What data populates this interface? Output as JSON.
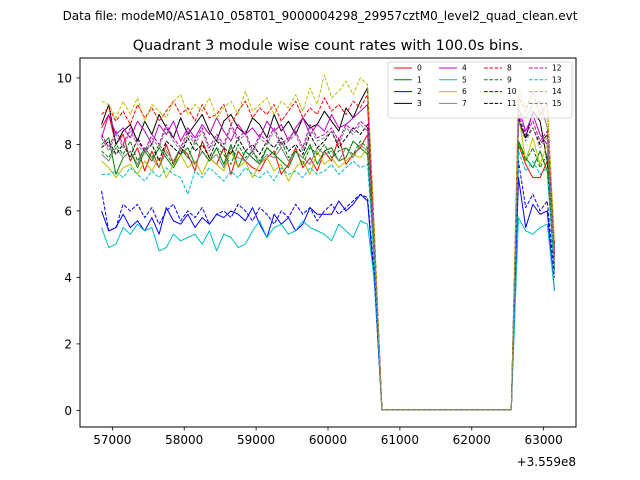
{
  "chart_data": {
    "type": "line",
    "suptitle": "Data file: modeM0/AS1A10_058T01_9000004298_29957cztM0_level2_quad_clean.evt",
    "title": "Quadrant 3 module wise count rates with 100.0s bins.",
    "xlabel": "",
    "ylabel": "",
    "x_offset_label": "+3.559e8",
    "xlim": [
      56550,
      63450
    ],
    "ylim": [
      -0.5,
      10.6
    ],
    "x_ticks": [
      57000,
      58000,
      59000,
      60000,
      61000,
      62000,
      63000
    ],
    "y_ticks": [
      0,
      2,
      4,
      6,
      8,
      10
    ],
    "x": [
      56850,
      56950,
      57050,
      57150,
      57250,
      57350,
      57450,
      57550,
      57650,
      57750,
      57850,
      57950,
      58050,
      58150,
      58250,
      58350,
      58450,
      58550,
      58650,
      58750,
      58850,
      58950,
      59050,
      59150,
      59250,
      59350,
      59450,
      59550,
      59650,
      59750,
      59850,
      59950,
      60050,
      60150,
      60250,
      60350,
      60450,
      60550,
      60650,
      60750,
      60850,
      60950,
      61050,
      61150,
      61250,
      61350,
      61450,
      61550,
      61650,
      61750,
      61850,
      61950,
      62050,
      62150,
      62250,
      62350,
      62450,
      62550,
      62650,
      62750,
      62850,
      62950,
      63050,
      63150
    ],
    "series": [
      {
        "name": "0",
        "color": "#ff0000",
        "dash": "solid",
        "values": [
          8.5,
          8.9,
          8.0,
          8.3,
          7.5,
          7.9,
          7.2,
          7.8,
          7.3,
          8.0,
          7.4,
          7.9,
          7.7,
          7.2,
          8.1,
          7.6,
          7.4,
          7.9,
          7.1,
          7.8,
          7.5,
          7.3,
          7.2,
          7.6,
          7.8,
          7.1,
          7.4,
          7.9,
          7.3,
          7.6,
          7.2,
          7.8,
          7.5,
          8.2,
          7.4,
          7.7,
          7.9,
          8.3,
          4.2,
          0.02,
          0.02,
          0.02,
          0.02,
          0.02,
          0.02,
          0.02,
          0.02,
          0.02,
          0.02,
          0.02,
          0.02,
          0.02,
          0.02,
          0.02,
          0.02,
          0.02,
          0.02,
          0.02,
          8.0,
          7.4,
          7.0,
          7.0,
          7.5,
          4.3
        ]
      },
      {
        "name": "1",
        "color": "#008000",
        "dash": "solid",
        "values": [
          8.0,
          8.2,
          7.1,
          7.6,
          7.8,
          7.3,
          7.8,
          7.5,
          7.9,
          7.6,
          7.3,
          7.7,
          7.9,
          7.4,
          7.8,
          7.5,
          7.9,
          7.4,
          8.0,
          7.3,
          7.8,
          7.6,
          7.4,
          7.9,
          7.7,
          7.5,
          7.3,
          7.8,
          7.6,
          8.0,
          7.4,
          7.8,
          7.9,
          7.5,
          7.6,
          8.1,
          7.9,
          7.7,
          4.4,
          0.02,
          0.02,
          0.02,
          0.02,
          0.02,
          0.02,
          0.02,
          0.02,
          0.02,
          0.02,
          0.02,
          0.02,
          0.02,
          0.02,
          0.02,
          0.02,
          0.02,
          0.02,
          0.02,
          8.1,
          7.6,
          7.3,
          7.8,
          7.2,
          4.2
        ]
      },
      {
        "name": "2",
        "color": "#0000ff",
        "dash": "solid",
        "values": [
          6.0,
          5.4,
          5.5,
          5.9,
          5.5,
          5.7,
          5.4,
          5.8,
          5.3,
          6.1,
          5.7,
          5.6,
          5.9,
          5.5,
          5.8,
          5.6,
          5.9,
          5.8,
          6.0,
          5.9,
          5.7,
          6.1,
          5.6,
          5.2,
          5.9,
          5.6,
          5.8,
          5.4,
          5.6,
          6.1,
          5.9,
          5.9,
          5.9,
          6.3,
          6.0,
          6.2,
          6.5,
          6.3,
          3.7,
          0.02,
          0.02,
          0.02,
          0.02,
          0.02,
          0.02,
          0.02,
          0.02,
          0.02,
          0.02,
          0.02,
          0.02,
          0.02,
          0.02,
          0.02,
          0.02,
          0.02,
          0.02,
          0.02,
          7.0,
          5.5,
          6.2,
          5.9,
          6.0,
          3.6
        ]
      },
      {
        "name": "3",
        "color": "#000000",
        "dash": "solid",
        "values": [
          8.6,
          9.2,
          8.0,
          8.4,
          8.6,
          8.1,
          8.7,
          8.3,
          8.9,
          8.5,
          8.2,
          8.8,
          8.3,
          8.6,
          8.9,
          8.4,
          8.1,
          8.7,
          8.9,
          8.5,
          8.3,
          8.8,
          8.6,
          8.2,
          8.9,
          8.4,
          8.7,
          8.3,
          8.8,
          8.5,
          8.6,
          9.0,
          8.7,
          8.4,
          9.1,
          8.8,
          9.3,
          9.7,
          5.0,
          0.02,
          0.02,
          0.02,
          0.02,
          0.02,
          0.02,
          0.02,
          0.02,
          0.02,
          0.02,
          0.02,
          0.02,
          0.02,
          0.02,
          0.02,
          0.02,
          0.02,
          0.02,
          0.02,
          8.7,
          8.2,
          9.0,
          8.7,
          7.5,
          4.6
        ]
      },
      {
        "name": "4",
        "color": "#bf00bf",
        "dash": "solid",
        "values": [
          8.2,
          8.9,
          8.3,
          8.5,
          8.2,
          8.7,
          8.4,
          8.0,
          8.6,
          8.3,
          8.7,
          8.1,
          8.5,
          8.2,
          8.6,
          8.3,
          8.8,
          8.4,
          8.1,
          8.6,
          8.3,
          8.5,
          8.2,
          8.7,
          8.4,
          8.6,
          8.1,
          8.5,
          8.8,
          8.3,
          8.6,
          8.4,
          8.9,
          8.5,
          8.6,
          8.8,
          9.0,
          9.2,
          4.9,
          0.02,
          0.02,
          0.02,
          0.02,
          0.02,
          0.02,
          0.02,
          0.02,
          0.02,
          0.02,
          0.02,
          0.02,
          0.02,
          0.02,
          0.02,
          0.02,
          0.02,
          0.02,
          0.02,
          9.1,
          8.4,
          8.9,
          8.3,
          8.0,
          4.8
        ]
      },
      {
        "name": "5",
        "color": "#00bfbf",
        "dash": "solid",
        "values": [
          5.5,
          4.9,
          5.0,
          5.5,
          5.3,
          5.6,
          5.4,
          5.5,
          4.8,
          4.9,
          5.3,
          5.1,
          5.2,
          5.3,
          5.0,
          5.4,
          4.8,
          5.3,
          5.2,
          4.9,
          5.0,
          5.4,
          5.7,
          5.2,
          5.5,
          5.6,
          5.3,
          5.4,
          5.7,
          5.5,
          5.4,
          5.3,
          5.1,
          5.6,
          5.4,
          5.2,
          5.7,
          5.6,
          3.8,
          0.02,
          0.02,
          0.02,
          0.02,
          0.02,
          0.02,
          0.02,
          0.02,
          0.02,
          0.02,
          0.02,
          0.02,
          0.02,
          0.02,
          0.02,
          0.02,
          0.02,
          0.02,
          0.02,
          5.8,
          5.4,
          5.3,
          5.5,
          5.6,
          3.6
        ]
      },
      {
        "name": "6",
        "color": "#bfbf00",
        "dash": "solid",
        "values": [
          7.5,
          7.3,
          7.0,
          7.3,
          7.4,
          7.1,
          7.5,
          7.2,
          7.6,
          7.0,
          7.4,
          7.7,
          7.3,
          7.5,
          7.1,
          7.6,
          7.4,
          7.2,
          7.8,
          7.3,
          7.5,
          7.0,
          7.4,
          7.6,
          7.2,
          7.4,
          6.9,
          7.3,
          7.5,
          7.1,
          7.8,
          7.4,
          7.6,
          7.3,
          7.5,
          7.7,
          7.6,
          7.9,
          4.5,
          0.02,
          0.02,
          0.02,
          0.02,
          0.02,
          0.02,
          0.02,
          0.02,
          0.02,
          0.02,
          0.02,
          0.02,
          0.02,
          0.02,
          0.02,
          0.02,
          0.02,
          0.02,
          0.02,
          8.9,
          7.5,
          8.2,
          7.4,
          8.0,
          4.6
        ]
      },
      {
        "name": "7",
        "color": "#808080",
        "dash": "solid",
        "values": [
          7.7,
          7.5,
          7.9,
          7.6,
          7.8,
          7.4,
          7.9,
          7.6,
          7.3,
          7.8,
          7.5,
          7.9,
          7.6,
          7.4,
          7.8,
          7.5,
          7.7,
          7.3,
          7.9,
          7.6,
          7.5,
          7.8,
          7.4,
          7.7,
          7.6,
          7.9,
          7.5,
          7.8,
          7.6,
          7.4,
          7.9,
          7.7,
          7.8,
          7.5,
          7.9,
          7.6,
          8.0,
          7.8,
          4.6,
          0.02,
          0.02,
          0.02,
          0.02,
          0.02,
          0.02,
          0.02,
          0.02,
          0.02,
          0.02,
          0.02,
          0.02,
          0.02,
          0.02,
          0.02,
          0.02,
          0.02,
          0.02,
          0.02,
          9.0,
          8.8,
          9.2,
          9.3,
          8.5,
          4.9
        ]
      },
      {
        "name": "8",
        "color": "#ff0000",
        "dash": "dashed",
        "values": [
          8.9,
          9.1,
          8.7,
          9.0,
          8.6,
          9.2,
          8.8,
          9.1,
          8.7,
          9.0,
          9.3,
          8.9,
          9.1,
          8.7,
          9.2,
          8.8,
          8.9,
          9.2,
          8.6,
          9.0,
          9.3,
          8.8,
          9.1,
          8.9,
          9.2,
          8.7,
          9.0,
          9.3,
          8.8,
          9.1,
          8.9,
          9.4,
          9.0,
          9.2,
          8.9,
          9.3,
          9.1,
          9.5,
          5.1,
          0.02,
          0.02,
          0.02,
          0.02,
          0.02,
          0.02,
          0.02,
          0.02,
          0.02,
          0.02,
          0.02,
          0.02,
          0.02,
          0.02,
          0.02,
          0.02,
          0.02,
          0.02,
          0.02,
          9.4,
          9.0,
          9.6,
          8.9,
          9.2,
          5.0
        ]
      },
      {
        "name": "9",
        "color": "#008000",
        "dash": "dashed",
        "values": [
          7.8,
          7.6,
          8.0,
          7.7,
          8.1,
          7.5,
          7.9,
          7.6,
          8.0,
          7.7,
          7.4,
          7.9,
          7.6,
          8.1,
          7.8,
          7.5,
          7.9,
          7.7,
          7.4,
          8.0,
          7.6,
          7.8,
          7.5,
          7.9,
          7.7,
          8.1,
          7.6,
          7.8,
          7.4,
          7.9,
          7.7,
          8.0,
          7.6,
          7.8,
          7.9,
          7.7,
          8.1,
          7.9,
          4.5,
          0.02,
          0.02,
          0.02,
          0.02,
          0.02,
          0.02,
          0.02,
          0.02,
          0.02,
          0.02,
          0.02,
          0.02,
          0.02,
          0.02,
          0.02,
          0.02,
          0.02,
          0.02,
          0.02,
          8.1,
          7.5,
          7.9,
          7.3,
          7.7,
          4.4
        ]
      },
      {
        "name": "10",
        "color": "#0000ff",
        "dash": "dashed",
        "values": [
          6.6,
          5.4,
          5.5,
          6.2,
          6.0,
          6.2,
          5.8,
          6.1,
          5.6,
          6.0,
          6.2,
          5.7,
          6.0,
          5.8,
          6.1,
          5.6,
          5.9,
          6.0,
          5.8,
          6.2,
          6.0,
          5.7,
          6.1,
          5.9,
          5.6,
          6.0,
          5.8,
          6.2,
          5.9,
          6.1,
          5.7,
          6.0,
          6.2,
          5.9,
          6.1,
          6.3,
          6.5,
          6.4,
          4.0,
          0.02,
          0.02,
          0.02,
          0.02,
          0.02,
          0.02,
          0.02,
          0.02,
          0.02,
          0.02,
          0.02,
          0.02,
          0.02,
          0.02,
          0.02,
          0.02,
          0.02,
          0.02,
          0.02,
          7.5,
          6.1,
          6.5,
          6.0,
          6.3,
          4.0
        ]
      },
      {
        "name": "11",
        "color": "#000000",
        "dash": "dashed",
        "values": [
          7.9,
          8.1,
          7.7,
          8.0,
          7.6,
          8.2,
          7.8,
          8.0,
          7.5,
          8.1,
          7.9,
          7.7,
          8.2,
          7.8,
          8.0,
          7.6,
          8.1,
          7.9,
          7.7,
          8.2,
          7.8,
          8.0,
          7.7,
          8.1,
          7.9,
          8.2,
          7.8,
          8.0,
          7.7,
          8.3,
          7.9,
          8.1,
          8.4,
          7.9,
          8.2,
          8.5,
          8.3,
          8.6,
          4.7,
          0.02,
          0.02,
          0.02,
          0.02,
          0.02,
          0.02,
          0.02,
          0.02,
          0.02,
          0.02,
          0.02,
          0.02,
          0.02,
          0.02,
          0.02,
          0.02,
          0.02,
          0.02,
          0.02,
          8.8,
          8.2,
          8.5,
          8.0,
          8.3,
          4.7
        ]
      },
      {
        "name": "12",
        "color": "#bf00bf",
        "dash": "dashed",
        "values": [
          8.3,
          7.9,
          8.4,
          8.0,
          8.5,
          8.1,
          7.8,
          8.3,
          8.0,
          8.6,
          8.2,
          7.9,
          8.4,
          8.1,
          8.5,
          7.9,
          8.3,
          8.0,
          8.6,
          8.2,
          8.4,
          7.8,
          8.3,
          8.1,
          8.5,
          8.0,
          8.2,
          8.4,
          7.9,
          8.6,
          8.2,
          8.3,
          8.5,
          8.1,
          8.6,
          8.4,
          8.7,
          8.5,
          4.8,
          0.02,
          0.02,
          0.02,
          0.02,
          0.02,
          0.02,
          0.02,
          0.02,
          0.02,
          0.02,
          0.02,
          0.02,
          0.02,
          0.02,
          0.02,
          0.02,
          0.02,
          0.02,
          0.02,
          8.9,
          8.3,
          8.7,
          8.1,
          8.4,
          4.6
        ]
      },
      {
        "name": "13",
        "color": "#00bfbf",
        "dash": "dashed",
        "values": [
          7.1,
          7.1,
          7.2,
          7.0,
          7.3,
          7.1,
          6.9,
          7.2,
          7.0,
          7.3,
          7.1,
          7.0,
          6.5,
          7.2,
          7.0,
          7.3,
          7.1,
          6.9,
          7.2,
          7.0,
          7.3,
          7.1,
          7.0,
          7.2,
          6.9,
          7.3,
          7.1,
          7.2,
          7.0,
          7.3,
          7.1,
          7.2,
          7.4,
          7.1,
          7.3,
          7.5,
          7.3,
          7.4,
          4.3,
          0.02,
          0.02,
          0.02,
          0.02,
          0.02,
          0.02,
          0.02,
          0.02,
          0.02,
          0.02,
          0.02,
          0.02,
          0.02,
          0.02,
          0.02,
          0.02,
          0.02,
          0.02,
          0.02,
          7.8,
          7.2,
          7.5,
          7.1,
          7.3,
          4.3
        ]
      },
      {
        "name": "14",
        "color": "#bfbf00",
        "dash": "dashed",
        "values": [
          9.3,
          9.2,
          8.8,
          9.3,
          8.9,
          9.4,
          8.7,
          9.2,
          9.0,
          8.8,
          9.3,
          9.5,
          8.9,
          9.2,
          9.0,
          9.4,
          8.8,
          9.1,
          9.3,
          8.9,
          9.6,
          9.0,
          9.2,
          9.4,
          8.9,
          9.3,
          9.1,
          9.5,
          9.0,
          9.7,
          9.2,
          10.1,
          9.4,
          9.6,
          9.9,
          9.5,
          10.0,
          9.8,
          5.2,
          0.02,
          0.02,
          0.02,
          0.02,
          0.02,
          0.02,
          0.02,
          0.02,
          0.02,
          0.02,
          0.02,
          0.02,
          0.02,
          0.02,
          0.02,
          0.02,
          0.02,
          0.02,
          0.02,
          9.7,
          9.1,
          9.6,
          8.8,
          9.3,
          5.1
        ]
      },
      {
        "name": "15",
        "color": "#808080",
        "dash": "dashed",
        "values": [
          8.2,
          7.8,
          8.3,
          7.9,
          8.4,
          8.0,
          7.7,
          8.2,
          7.9,
          8.5,
          8.1,
          7.8,
          8.3,
          8.0,
          8.4,
          7.8,
          8.2,
          7.9,
          8.5,
          8.1,
          8.3,
          7.7,
          8.2,
          8.0,
          8.4,
          7.9,
          8.1,
          8.3,
          7.8,
          8.5,
          8.1,
          8.2,
          8.4,
          8.0,
          8.5,
          8.3,
          8.6,
          8.4,
          4.7,
          0.02,
          0.02,
          0.02,
          0.02,
          0.02,
          0.02,
          0.02,
          0.02,
          0.02,
          0.02,
          0.02,
          0.02,
          0.02,
          0.02,
          0.02,
          0.02,
          0.02,
          0.02,
          0.02,
          8.7,
          8.1,
          8.5,
          7.9,
          8.2,
          4.5
        ]
      }
    ],
    "legend": {
      "position": "top-right",
      "columns": 4,
      "entries": [
        "0",
        "1",
        "2",
        "3",
        "4",
        "5",
        "6",
        "7",
        "8",
        "9",
        "10",
        "11",
        "12",
        "13",
        "14",
        "15"
      ]
    }
  }
}
